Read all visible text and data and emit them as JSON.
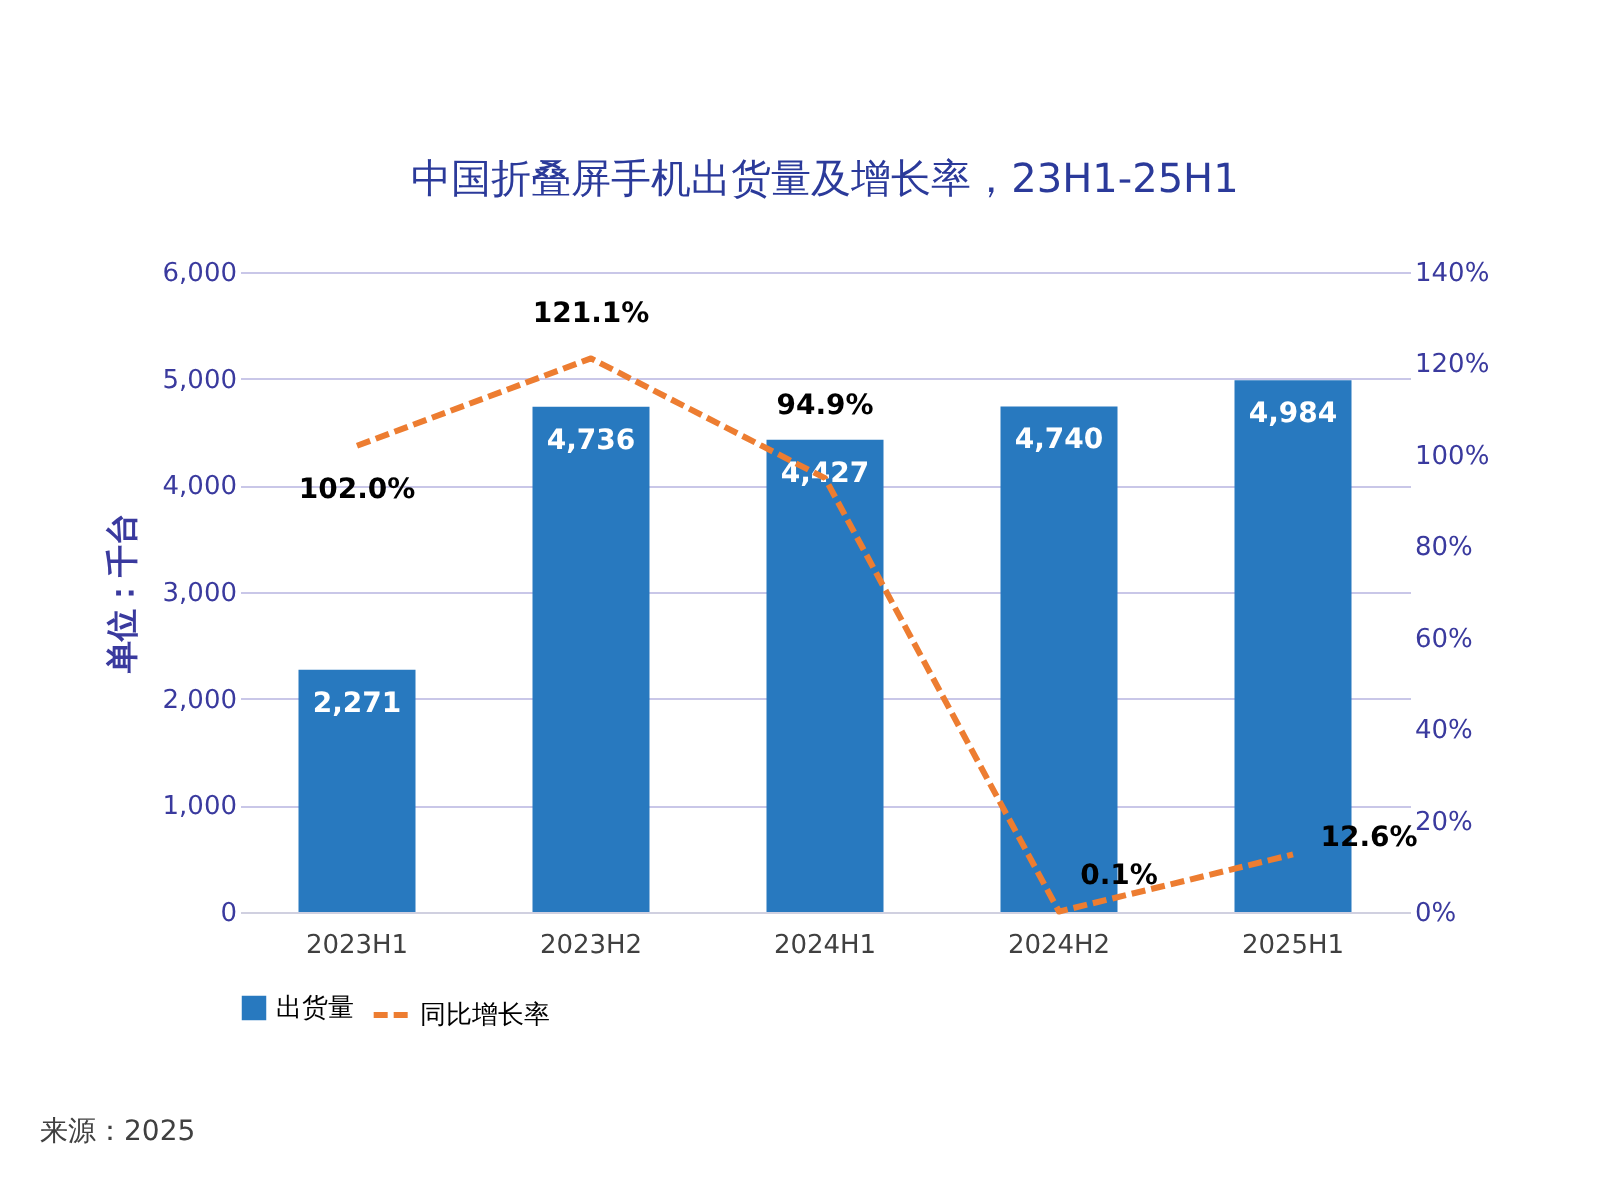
{
  "chart_data": {
    "type": "bar",
    "title": "中国折叠屏手机出货量及增长率，23H1-25H1",
    "ylabel": "单位：千台",
    "categories": [
      "2023H1",
      "2023H2",
      "2024H1",
      "2024H2",
      "2025H1"
    ],
    "series": [
      {
        "name": "出货量",
        "color": "#2879bf",
        "values": [
          2271,
          4736,
          4427,
          4740,
          4984
        ],
        "value_labels": [
          "2,271",
          "4,736",
          "4,427",
          "4,740",
          "4,984"
        ]
      },
      {
        "name": "同比增长率",
        "type": "line",
        "axis": "y2",
        "color": "#ed7d31",
        "line_style": "dashed",
        "values": [
          102.0,
          121.1,
          94.9,
          0.1,
          12.6
        ],
        "value_labels": [
          "102.0%",
          "121.1%",
          "94.9%",
          "0.1%",
          "12.6%"
        ]
      }
    ],
    "ylim": [
      0,
      6000
    ],
    "yticks": [
      {
        "value": 0,
        "label": "0"
      },
      {
        "value": 1000,
        "label": "1,000"
      },
      {
        "value": 2000,
        "label": "2,000"
      },
      {
        "value": 3000,
        "label": "3,000"
      },
      {
        "value": 4000,
        "label": "4,000"
      },
      {
        "value": 5000,
        "label": "5,000"
      },
      {
        "value": 6000,
        "label": "6,000"
      }
    ],
    "y2lim": [
      0,
      140
    ],
    "y2ticks": [
      {
        "value": 0,
        "label": "0%"
      },
      {
        "value": 20,
        "label": "20%"
      },
      {
        "value": 40,
        "label": "40%"
      },
      {
        "value": 60,
        "label": "60%"
      },
      {
        "value": 80,
        "label": "80%"
      },
      {
        "value": 100,
        "label": "100%"
      },
      {
        "value": 120,
        "label": "120%"
      },
      {
        "value": 140,
        "label": "140%"
      }
    ],
    "grid": "y",
    "legend": "bottom",
    "marker": "none",
    "annotations": [
      "来源：2025"
    ]
  }
}
